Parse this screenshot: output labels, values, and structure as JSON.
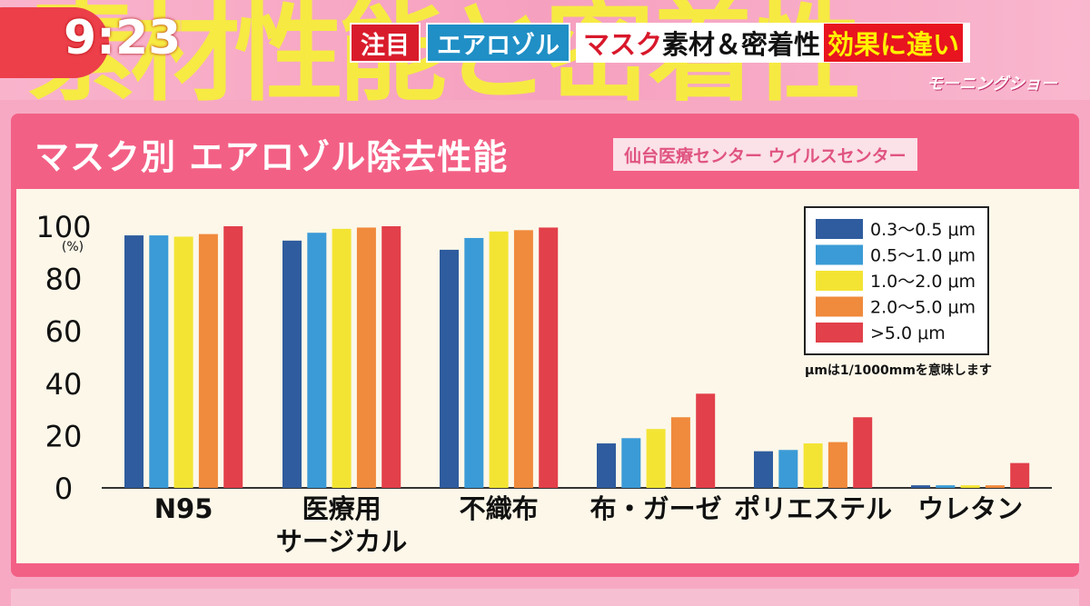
{
  "clock": "9:23",
  "background_word": "素材性能と密着性",
  "headline": {
    "tag1": "注目",
    "tag2": "エアロゾル",
    "part_red": "マスク",
    "part_black": "素材＆密着性",
    "part_highlight": "効果に違い"
  },
  "program_logo": "モーニングショー",
  "source": "仙台医療センター ウイルスセンター",
  "chart_data": {
    "type": "bar",
    "title": "マスク別 エアロゾル除去性能",
    "ylabel": "(%)",
    "ylim": [
      0,
      100
    ],
    "yticks": [
      "100",
      "80",
      "60",
      "40",
      "20",
      "0"
    ],
    "categories": [
      "N95",
      "医療用\nサージカル",
      "不織布",
      "布・ガーゼ",
      "ポリエステル",
      "ウレタン"
    ],
    "category_lines": [
      [
        "N95"
      ],
      [
        "医療用",
        "サージカル"
      ],
      [
        "不織布"
      ],
      [
        "布・ガーゼ"
      ],
      [
        "ポリエステル"
      ],
      [
        "ウレタン"
      ]
    ],
    "series": [
      {
        "name": "0.3〜0.5 μm",
        "color": "#2f5c9e",
        "values": [
          96.5,
          94.5,
          91,
          17,
          14,
          1
        ]
      },
      {
        "name": "0.5〜1.0 μm",
        "color": "#3b9bd6",
        "values": [
          96.5,
          97.5,
          95.5,
          19,
          14.5,
          1
        ]
      },
      {
        "name": "1.0〜2.0 μm",
        "color": "#f3e434",
        "values": [
          96,
          99,
          98,
          22.5,
          17,
          1
        ]
      },
      {
        "name": "2.0〜5.0 μm",
        "color": "#f08a3c",
        "values": [
          97,
          99.5,
          98.5,
          27,
          17.5,
          1
        ]
      },
      {
        "name": ">5.0 μm",
        "color": "#e2404a",
        "values": [
          100,
          100,
          99.5,
          36,
          27,
          9.5
        ]
      }
    ],
    "note": "μmは1/1000mmを意味します",
    "grid": false,
    "legend_position": "top-right"
  }
}
